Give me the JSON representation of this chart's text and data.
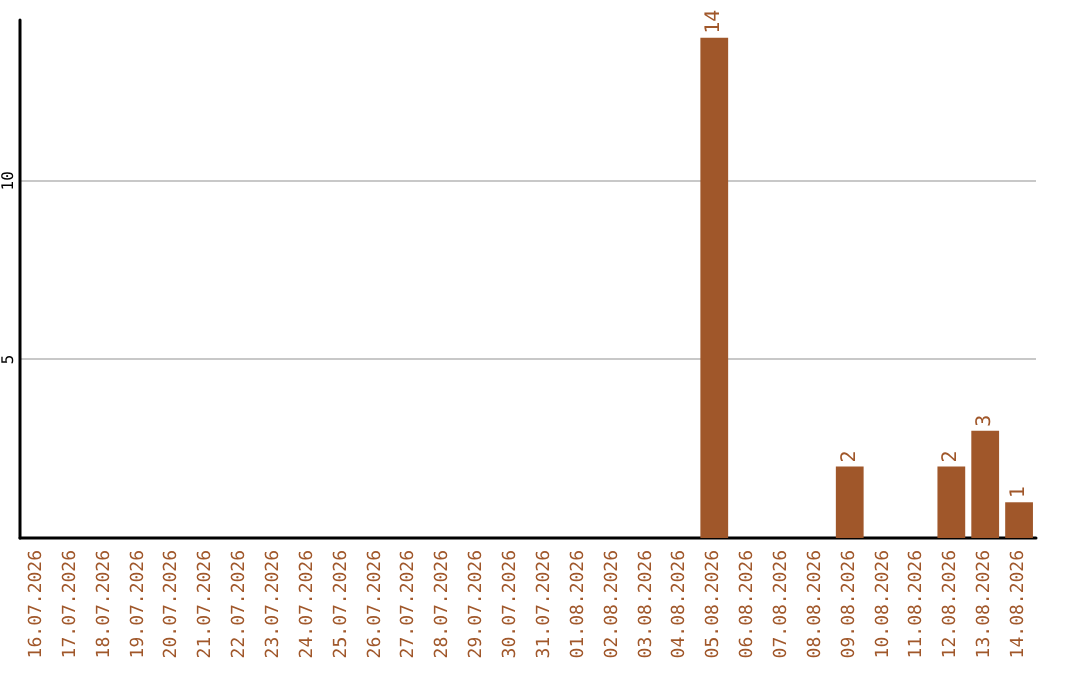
{
  "chart_data": {
    "type": "bar",
    "categories": [
      "16.07.2026",
      "17.07.2026",
      "18.07.2026",
      "19.07.2026",
      "20.07.2026",
      "21.07.2026",
      "22.07.2026",
      "23.07.2026",
      "24.07.2026",
      "25.07.2026",
      "26.07.2026",
      "27.07.2026",
      "28.07.2026",
      "29.07.2026",
      "30.07.2026",
      "31.07.2026",
      "01.08.2026",
      "02.08.2026",
      "03.08.2026",
      "04.08.2026",
      "05.08.2026",
      "06.08.2026",
      "07.08.2026",
      "08.08.2026",
      "09.08.2026",
      "10.08.2026",
      "11.08.2026",
      "12.08.2026",
      "13.08.2026",
      "14.08.2026"
    ],
    "values": [
      0,
      0,
      0,
      0,
      0,
      0,
      0,
      0,
      0,
      0,
      0,
      0,
      0,
      0,
      0,
      0,
      0,
      0,
      0,
      0,
      14,
      0,
      0,
      0,
      2,
      0,
      0,
      2,
      3,
      1
    ],
    "value_labels": [
      null,
      null,
      null,
      null,
      null,
      null,
      null,
      null,
      null,
      null,
      null,
      null,
      null,
      null,
      null,
      null,
      null,
      null,
      null,
      null,
      "14",
      null,
      null,
      null,
      "2",
      null,
      null,
      "2",
      "3",
      "1"
    ],
    "color": "#a0572a",
    "ylim": [
      0,
      14.5
    ],
    "yticks": [
      5,
      10
    ],
    "grid": "y"
  }
}
